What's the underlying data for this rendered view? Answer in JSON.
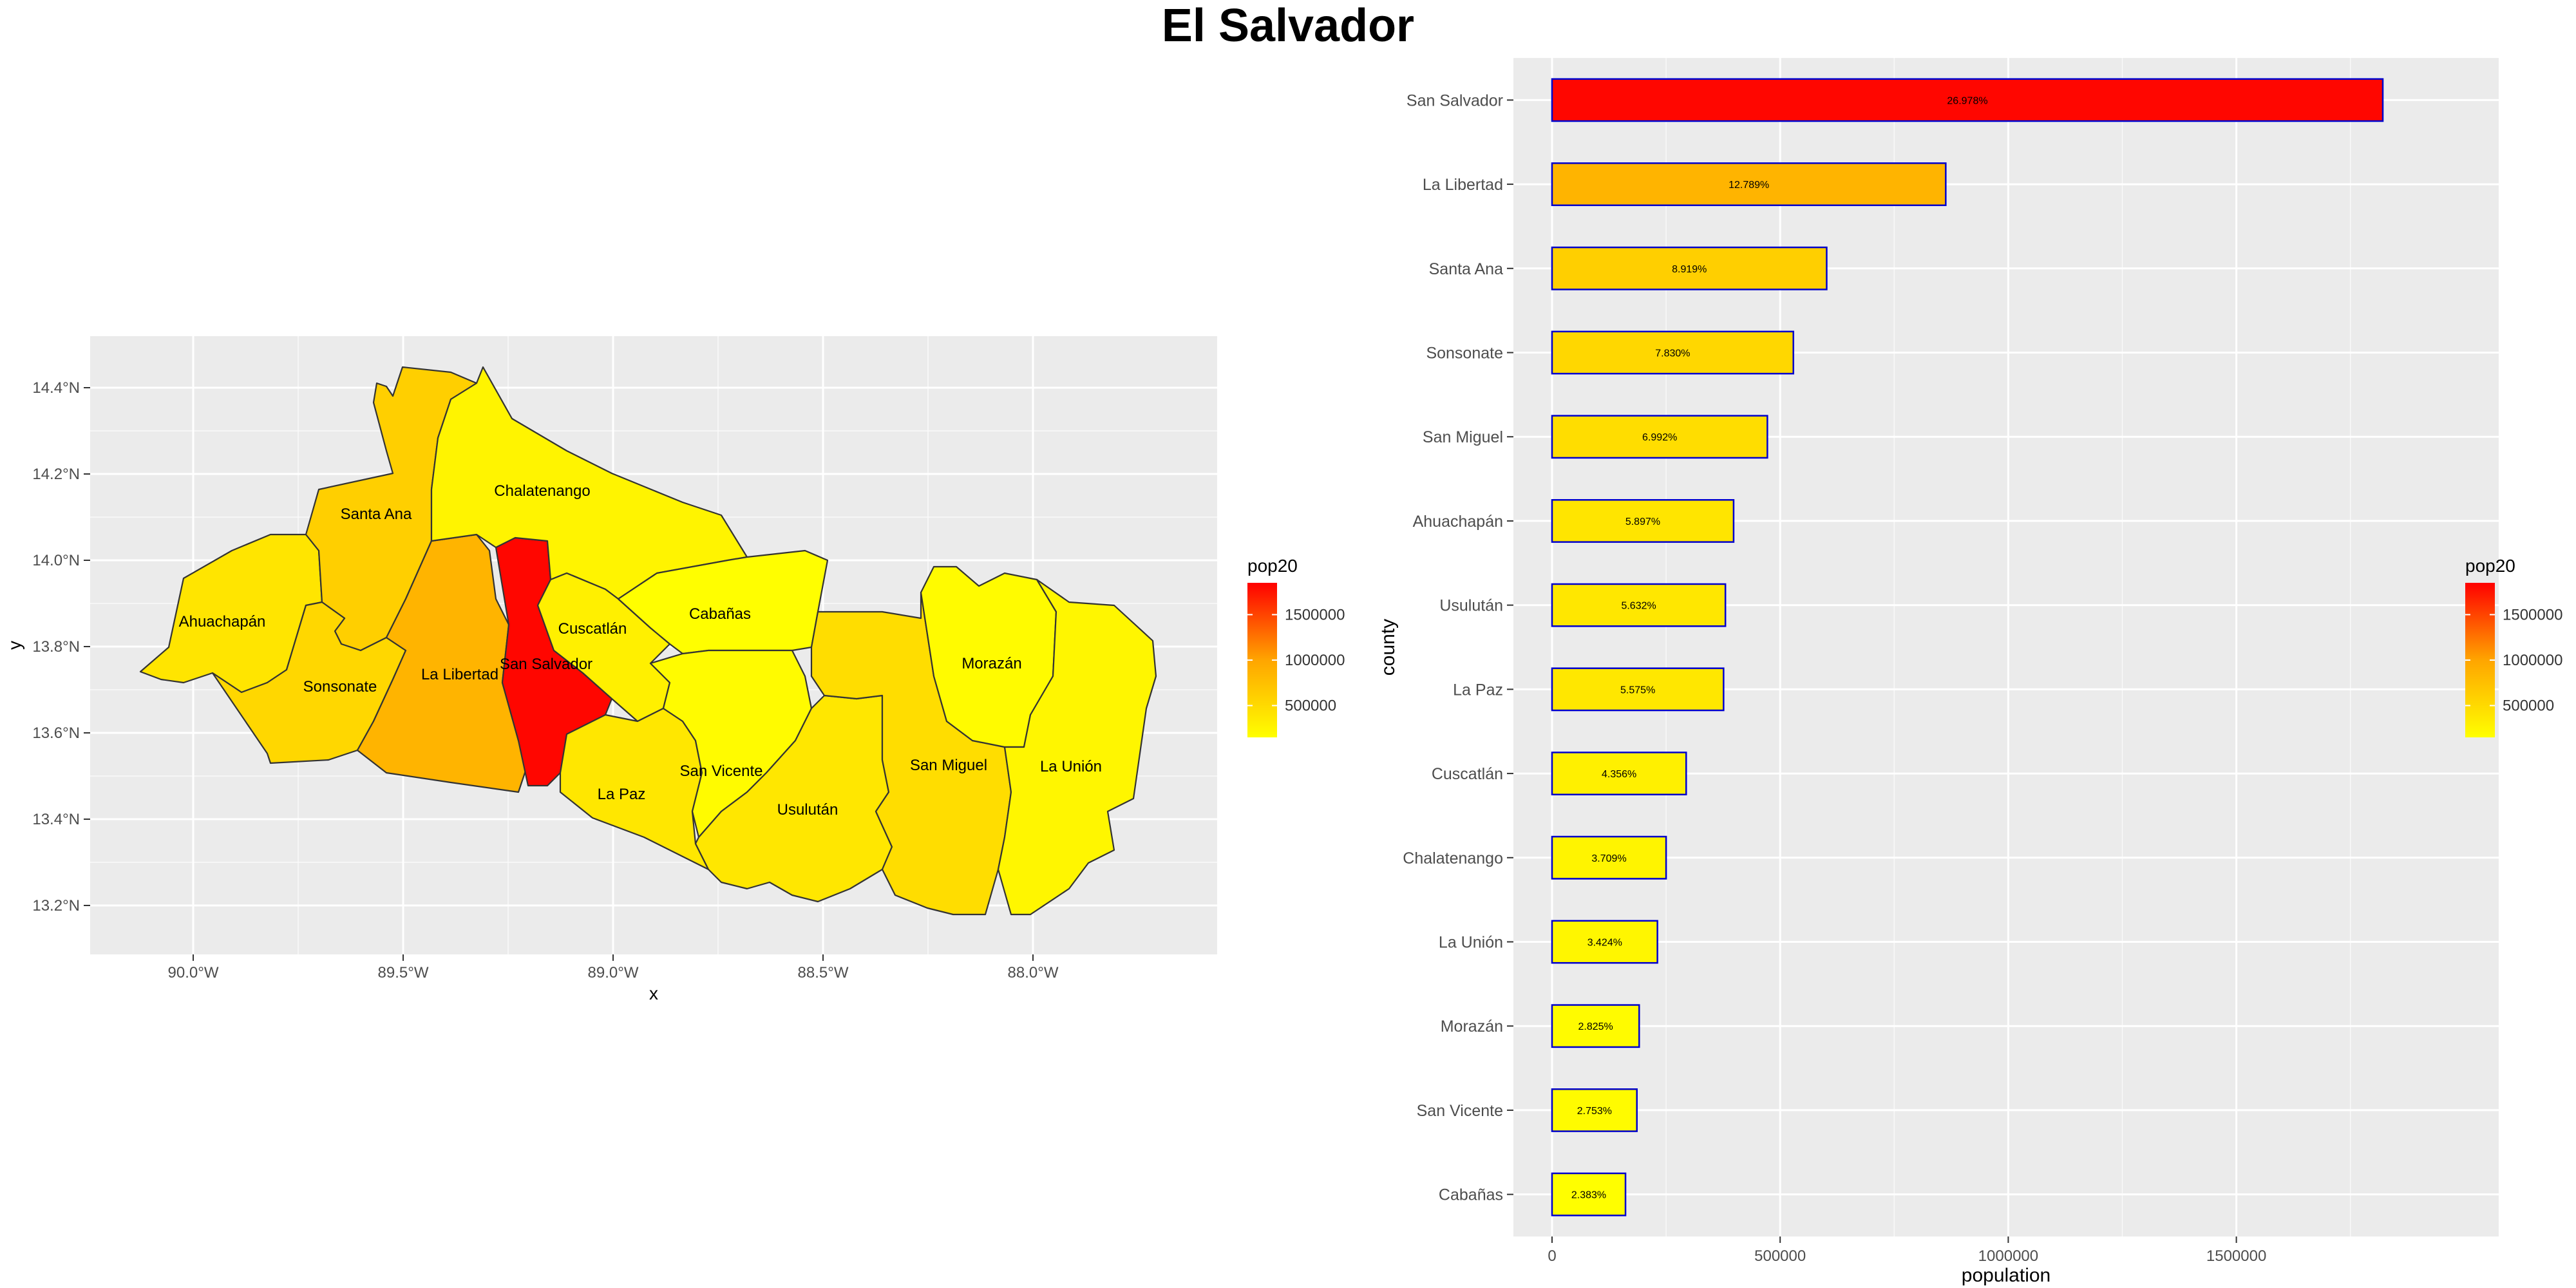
{
  "page_title": "El Salvador",
  "colors": {
    "low": "#ffff00",
    "mid": "#ffa500",
    "high": "#ff0000",
    "panel_bg": "#ebebeb",
    "grid": "#ffffff",
    "bar_border": "#0000cc",
    "region_border": "#333333"
  },
  "map": {
    "xlabel": "x",
    "ylabel": "y",
    "x_ticks": [
      "90.0°W",
      "89.5°W",
      "89.0°W",
      "88.5°W",
      "88.0°W"
    ],
    "y_ticks": [
      "14.4°N",
      "14.2°N",
      "14.0°N",
      "13.8°N",
      "13.6°N",
      "13.4°N",
      "13.2°N"
    ],
    "legend_title": "pop20",
    "legend_labels": [
      "1500000",
      "1000000",
      "500000"
    ],
    "regions": [
      {
        "name": "Ahuachapán",
        "pop20": 398000
      },
      {
        "name": "Santa Ana",
        "pop20": 602000
      },
      {
        "name": "Sonsonate",
        "pop20": 529000
      },
      {
        "name": "La Libertad",
        "pop20": 863000
      },
      {
        "name": "San Salvador",
        "pop20": 1821000
      },
      {
        "name": "Chalatenango",
        "pop20": 250000
      },
      {
        "name": "Cuscatlán",
        "pop20": 294000
      },
      {
        "name": "Cabañas",
        "pop20": 161000
      },
      {
        "name": "La Paz",
        "pop20": 376000
      },
      {
        "name": "San Vicente",
        "pop20": 186000
      },
      {
        "name": "Usulután",
        "pop20": 380000
      },
      {
        "name": "San Miguel",
        "pop20": 472000
      },
      {
        "name": "Morazán",
        "pop20": 191000
      },
      {
        "name": "La Unión",
        "pop20": 231000
      }
    ]
  },
  "chart_data": {
    "type": "bar",
    "orientation": "horizontal",
    "xlabel": "population",
    "ylabel": "county",
    "xlim": [
      0,
      1900000
    ],
    "x_ticks": [
      "0",
      "500000",
      "1000000",
      "1500000"
    ],
    "legend_title": "pop20",
    "legend_labels": [
      "1500000",
      "1000000",
      "500000"
    ],
    "categories": [
      "San Salvador",
      "La Libertad",
      "Santa Ana",
      "Sonsonate",
      "San Miguel",
      "Ahuachapán",
      "Usulután",
      "La Paz",
      "Cuscatlán",
      "Chalatenango",
      "La Unión",
      "Morazán",
      "San Vicente",
      "Cabañas"
    ],
    "values": [
      1821000,
      863000,
      602000,
      529000,
      472000,
      398000,
      380000,
      376000,
      294000,
      250000,
      231000,
      191000,
      186000,
      161000
    ],
    "labels": [
      "26.978%",
      "12.789%",
      "8.919%",
      "7.830%",
      "6.992%",
      "5.897%",
      "5.632%",
      "5.575%",
      "4.356%",
      "3.709%",
      "3.424%",
      "2.825%",
      "2.753%",
      "2.383%"
    ]
  }
}
